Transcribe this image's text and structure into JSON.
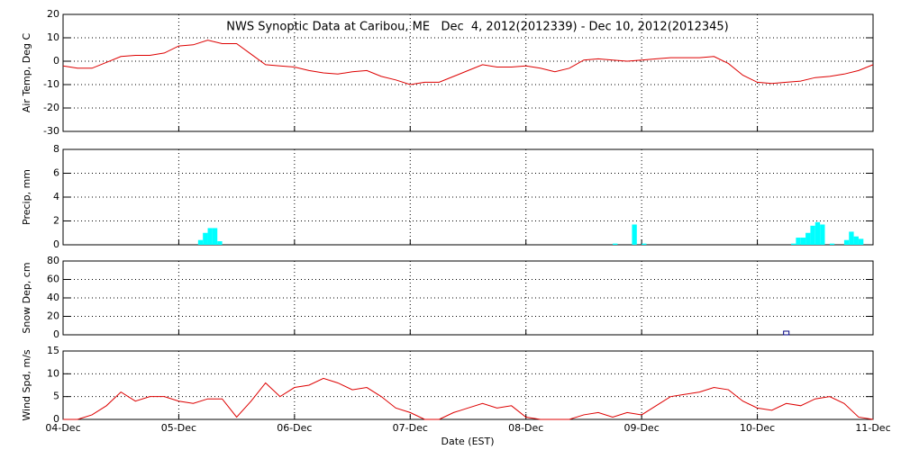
{
  "chart_data": [
    {
      "type": "line",
      "title": "NWS Synoptic Data at Caribou, ME   Dec  4, 2012(2012339) - Dec 10, 2012(2012345)",
      "ylabel": "Air Temp, Deg C",
      "ylim": [
        -30,
        20
      ],
      "yticks": [
        -30,
        -20,
        -10,
        0,
        10,
        20
      ],
      "xlim": [
        0,
        168
      ],
      "grid": true,
      "series": [
        {
          "name": "Air Temp",
          "color": "#dd0000",
          "x": [
            0,
            3,
            6,
            9,
            12,
            15,
            18,
            21,
            24,
            27,
            30,
            33,
            36,
            39,
            42,
            45,
            48,
            51,
            54,
            57,
            60,
            63,
            66,
            69,
            72,
            75,
            78,
            81,
            84,
            87,
            90,
            93,
            96,
            99,
            102,
            105,
            108,
            111,
            114,
            117,
            120,
            123,
            126,
            129,
            132,
            135,
            138,
            141,
            144,
            147,
            150,
            153,
            156,
            159,
            162,
            165,
            168
          ],
          "values": [
            -2,
            -3,
            -3,
            -0.5,
            2,
            2.5,
            2.5,
            3.5,
            6.5,
            7,
            9,
            7.5,
            7.5,
            3,
            -1.5,
            -2,
            -2.5,
            -4,
            -5,
            -5.5,
            -4.5,
            -4,
            -6.5,
            -8,
            -10,
            -9,
            -9,
            -6.5,
            -4,
            -1.5,
            -2.5,
            -2.5,
            -2,
            -3,
            -4.5,
            -3,
            0.5,
            1,
            0.5,
            0,
            0.5,
            1,
            1.5,
            1.5,
            1.5,
            2,
            -1,
            -6,
            -9,
            -9.5,
            -9,
            -8.5,
            -7,
            -6.5,
            -5.5,
            -4,
            -1.5
          ]
        }
      ]
    },
    {
      "type": "bar",
      "ylabel": "Precip, mm",
      "ylim": [
        0,
        8
      ],
      "yticks": [
        0,
        2,
        4,
        6,
        8
      ],
      "xlim": [
        0,
        168
      ],
      "grid": true,
      "series": [
        {
          "name": "Precip",
          "color": "#00ffff",
          "x": [
            28,
            29,
            30,
            31,
            32,
            114,
            118,
            120,
            151,
            152,
            153,
            154,
            155,
            156,
            157,
            159,
            162,
            163,
            164,
            165
          ],
          "values": [
            0.4,
            1.0,
            1.4,
            1.4,
            0.3,
            0.1,
            1.7,
            0.1,
            0.1,
            0.6,
            0.6,
            1.0,
            1.6,
            1.9,
            1.7,
            0.1,
            0.4,
            1.1,
            0.7,
            0.5
          ]
        }
      ]
    },
    {
      "type": "scatter",
      "ylabel": "Snow Dep, cm",
      "ylim": [
        0,
        80
      ],
      "yticks": [
        0,
        20,
        40,
        60,
        80
      ],
      "xlim": [
        0,
        168
      ],
      "grid": true,
      "series": [
        {
          "name": "Snow Depth",
          "color": "#000080",
          "x": [
            150
          ],
          "values": [
            1
          ]
        }
      ]
    },
    {
      "type": "line",
      "ylabel": "Wind Spd, m/s",
      "xlabel": "Date (EST)",
      "ylim": [
        0,
        15
      ],
      "yticks": [
        0,
        5,
        10,
        15
      ],
      "xlim": [
        0,
        168
      ],
      "grid": true,
      "xticks": [
        {
          "value": 0,
          "label": "04-Dec"
        },
        {
          "value": 24,
          "label": "05-Dec"
        },
        {
          "value": 48,
          "label": "06-Dec"
        },
        {
          "value": 72,
          "label": "07-Dec"
        },
        {
          "value": 96,
          "label": "08-Dec"
        },
        {
          "value": 120,
          "label": "09-Dec"
        },
        {
          "value": 144,
          "label": "10-Dec"
        },
        {
          "value": 168,
          "label": "11-Dec"
        }
      ],
      "series": [
        {
          "name": "Wind Speed",
          "color": "#dd0000",
          "x": [
            0,
            3,
            6,
            9,
            12,
            15,
            18,
            21,
            24,
            27,
            30,
            33,
            36,
            39,
            42,
            45,
            48,
            51,
            54,
            57,
            60,
            63,
            66,
            69,
            72,
            75,
            78,
            81,
            84,
            87,
            90,
            93,
            96,
            99,
            102,
            105,
            108,
            111,
            114,
            117,
            120,
            123,
            126,
            129,
            132,
            135,
            138,
            141,
            144,
            147,
            150,
            153,
            156,
            159,
            162,
            165,
            168
          ],
          "values": [
            0,
            0,
            1,
            3,
            6,
            4,
            5,
            5,
            4,
            3.5,
            4.5,
            4.5,
            0.5,
            4,
            8,
            5,
            7,
            7.5,
            9,
            8,
            6.5,
            7,
            5,
            2.5,
            1.5,
            0,
            0,
            1.5,
            2.5,
            3.5,
            2.5,
            3,
            0.5,
            0,
            0,
            0,
            1,
            1.5,
            0.5,
            1.5,
            1,
            3,
            5,
            5.5,
            6,
            7,
            6.5,
            4,
            2.5,
            2,
            3.5,
            3,
            4.5,
            5,
            3.5,
            0.5,
            0
          ]
        }
      ]
    }
  ]
}
